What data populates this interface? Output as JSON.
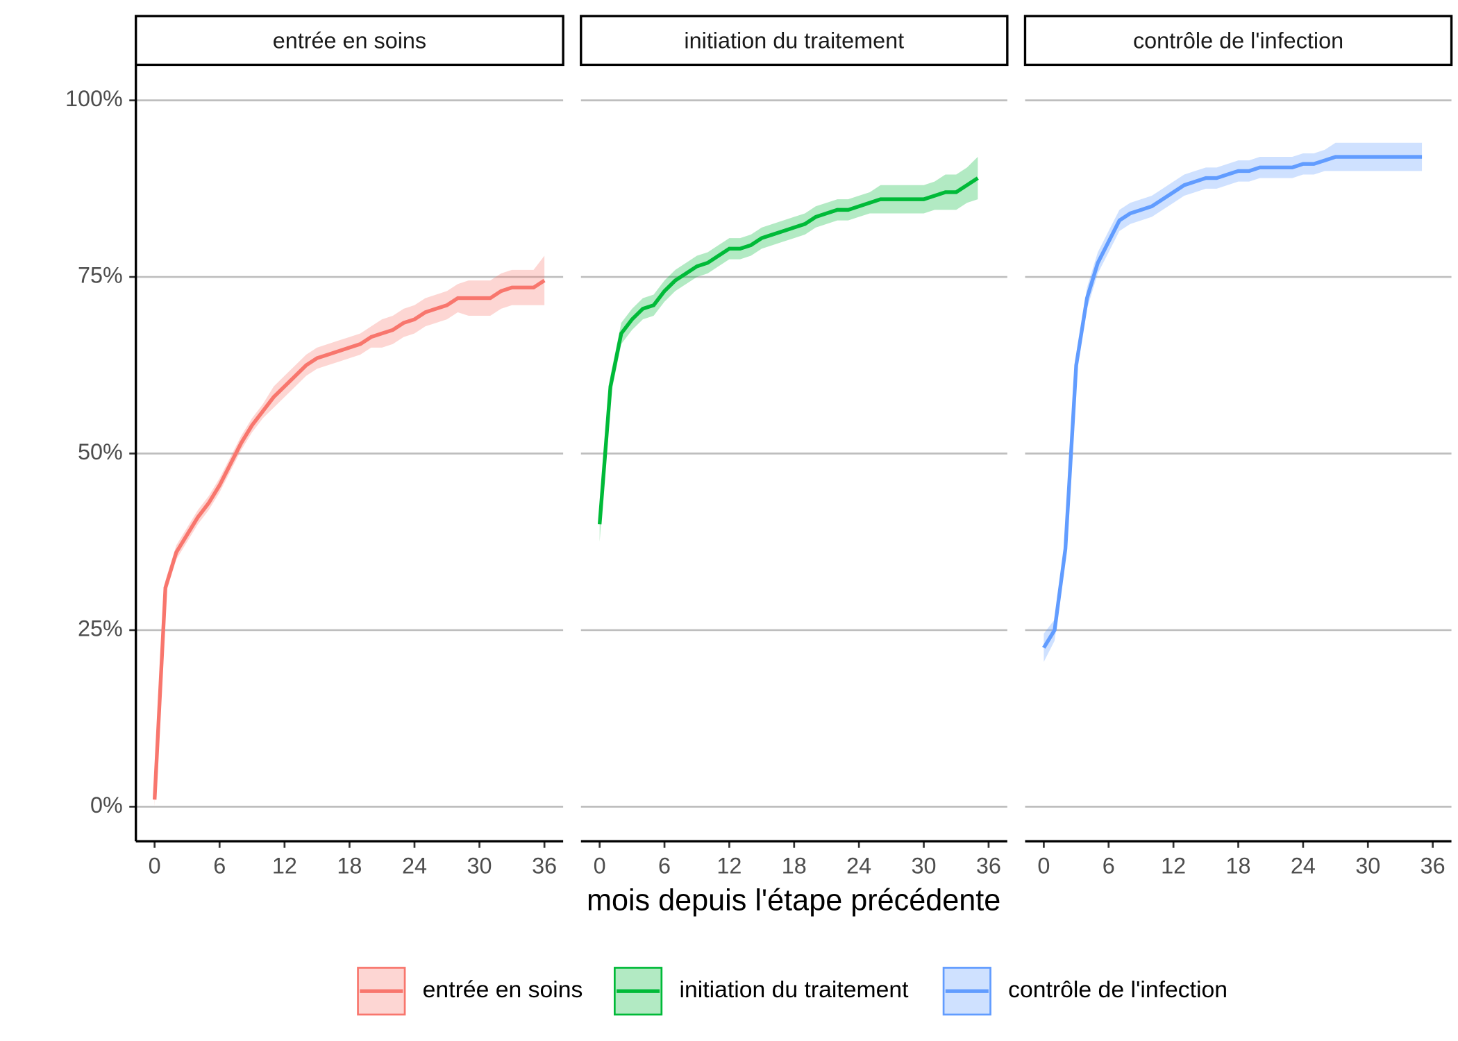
{
  "chart_data": {
    "type": "line",
    "xlabel": "mois depuis l'étape précédente",
    "xlim": [
      -1.73,
      37.73
    ],
    "xticks": [
      0,
      6,
      12,
      18,
      24,
      30,
      36
    ],
    "ylim": [
      -4.9,
      104.9
    ],
    "yticks": [
      {
        "value": 0,
        "label": "0%"
      },
      {
        "value": 25,
        "label": "25%"
      },
      {
        "value": 50,
        "label": "50%"
      },
      {
        "value": 75,
        "label": "75%"
      },
      {
        "value": 100,
        "label": "100%"
      }
    ],
    "grid": true,
    "legend": "bottom",
    "series": [
      {
        "name": "entrée en soins",
        "color": "#F8766D",
        "x": [
          0,
          1,
          2,
          3,
          4,
          5,
          6,
          7,
          8,
          9,
          10,
          11,
          12,
          13,
          14,
          15,
          16,
          17,
          18,
          19,
          20,
          21,
          22,
          23,
          24,
          25,
          26,
          27,
          28,
          29,
          30,
          31,
          32,
          33,
          34,
          35,
          36
        ],
        "values": [
          1,
          31,
          36,
          38.5,
          41,
          43,
          45.5,
          48.5,
          51.5,
          54,
          56,
          58,
          59.5,
          61,
          62.5,
          63.5,
          64,
          64.5,
          65,
          65.5,
          66.5,
          67,
          67.5,
          68.5,
          69,
          70,
          70.5,
          71,
          72,
          72,
          72,
          72,
          73,
          73.5,
          73.5,
          73.5,
          74.5
        ],
        "lower": [
          0,
          30,
          35,
          37.5,
          40,
          42,
          44.5,
          47.5,
          50.5,
          53,
          55,
          56.5,
          58,
          59.5,
          61,
          62,
          62.5,
          63,
          63.5,
          64,
          65,
          65,
          65.5,
          66.5,
          67,
          68,
          68.5,
          69,
          70,
          69.5,
          69.5,
          69.5,
          70.5,
          71,
          71,
          71,
          71
        ],
        "upper": [
          2,
          32,
          37,
          39.5,
          42,
          44,
          46.5,
          49.5,
          52.5,
          55,
          57,
          59.5,
          61,
          62.5,
          64,
          65,
          65.5,
          66,
          66.5,
          67,
          68,
          69,
          69.5,
          70.5,
          71,
          72,
          72.5,
          73,
          74,
          74.5,
          74.5,
          74.5,
          75.5,
          76,
          76,
          76,
          78
        ]
      },
      {
        "name": "initiation du traitement",
        "color": "#00BA38",
        "x": [
          0,
          1,
          2,
          3,
          4,
          5,
          6,
          7,
          8,
          9,
          10,
          11,
          12,
          13,
          14,
          15,
          16,
          17,
          18,
          19,
          20,
          21,
          22,
          23,
          24,
          25,
          26,
          27,
          28,
          29,
          30,
          31,
          32,
          33,
          34,
          35
        ],
        "values": [
          40,
          59.5,
          67,
          69,
          70.5,
          71,
          73,
          74.5,
          75.5,
          76.5,
          77,
          78,
          79,
          79,
          79.5,
          80.5,
          81,
          81.5,
          82,
          82.5,
          83.5,
          84,
          84.5,
          84.5,
          85,
          85.5,
          86,
          86,
          86,
          86,
          86,
          86.5,
          87,
          87,
          88,
          89
        ],
        "lower": [
          37.5,
          58,
          65.5,
          67.5,
          69,
          69.5,
          71.5,
          73,
          74,
          75,
          75.5,
          76.5,
          77.5,
          77.5,
          78,
          79,
          79.5,
          80,
          80.5,
          81,
          82,
          82.5,
          83,
          83,
          83.5,
          84,
          84,
          84,
          84,
          84,
          84,
          84.5,
          84.5,
          84.5,
          85.5,
          86
        ],
        "upper": [
          42.5,
          61,
          68.5,
          70.5,
          72,
          72.5,
          74.5,
          76,
          77,
          78,
          78.5,
          79.5,
          80.5,
          80.5,
          81,
          82,
          82.5,
          83,
          83.5,
          84,
          85,
          85.5,
          86,
          86,
          86.5,
          87,
          88,
          88,
          88,
          88,
          88,
          88.5,
          89.5,
          89.5,
          90.5,
          92
        ]
      },
      {
        "name": "contrôle de l'infection",
        "color": "#619CFF",
        "x": [
          0,
          1,
          2,
          3,
          4,
          5,
          6,
          7,
          8,
          9,
          10,
          11,
          12,
          13,
          14,
          15,
          16,
          17,
          18,
          19,
          20,
          21,
          22,
          23,
          24,
          25,
          26,
          27,
          28,
          29,
          30,
          31,
          32,
          33,
          34,
          35
        ],
        "values": [
          22.5,
          25,
          36.5,
          62.5,
          72,
          77,
          80,
          83,
          84,
          84.5,
          85,
          86,
          87,
          88,
          88.5,
          89,
          89,
          89.5,
          90,
          90,
          90.5,
          90.5,
          90.5,
          90.5,
          91,
          91,
          91.5,
          92,
          92,
          92,
          92,
          92,
          92,
          92,
          92,
          92
        ],
        "lower": [
          20.5,
          23.5,
          35,
          61,
          70.5,
          75.5,
          78.5,
          81.5,
          82.5,
          83,
          83.5,
          84.5,
          85.5,
          86.5,
          87,
          87.5,
          87.5,
          88,
          88.5,
          88.5,
          89,
          89,
          89,
          89,
          89.5,
          89.5,
          90,
          90,
          90,
          90,
          90,
          90,
          90,
          90,
          90,
          90
        ],
        "upper": [
          24.5,
          26.5,
          38,
          64,
          73.5,
          78.5,
          81.5,
          84.5,
          85.5,
          86,
          86.5,
          87.5,
          88.5,
          89.5,
          90,
          90.5,
          90.5,
          91,
          91.5,
          91.5,
          92,
          92,
          92,
          92,
          92.5,
          92.5,
          93,
          94,
          94,
          94,
          94,
          94,
          94,
          94,
          94,
          94
        ]
      }
    ]
  }
}
